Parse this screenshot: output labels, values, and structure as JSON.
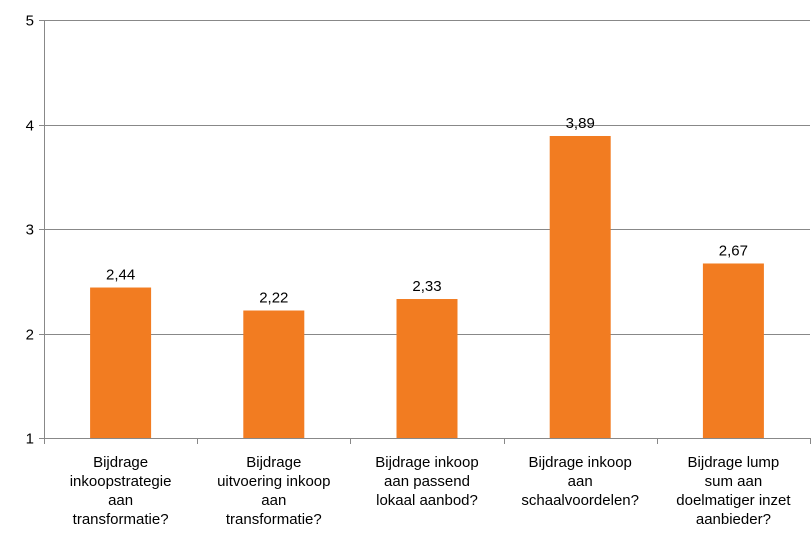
{
  "chart_data": {
    "type": "bar",
    "categories": [
      [
        "Bijdrage",
        "inkoopstrategie",
        "aan",
        "transformatie?"
      ],
      [
        "Bijdrage",
        "uitvoering inkoop",
        "aan",
        "transformatie?"
      ],
      [
        "Bijdrage inkoop",
        "aan passend",
        "lokaal aanbod?"
      ],
      [
        "Bijdrage inkoop",
        "aan",
        "schaalvoordelen?"
      ],
      [
        "Bijdrage lump",
        "sum aan",
        "doelmatiger inzet",
        "aanbieder?"
      ]
    ],
    "values": [
      2.44,
      2.22,
      2.33,
      3.89,
      2.67
    ],
    "data_labels": [
      "2,44",
      "2,22",
      "2,33",
      "3,89",
      "2,67"
    ],
    "y_ticks": [
      1,
      2,
      3,
      4,
      5
    ],
    "ylim": [
      1,
      5
    ],
    "grid": true,
    "colors": {
      "bar": "#F27C21",
      "grid": "#888888",
      "axis": "#888888"
    }
  }
}
